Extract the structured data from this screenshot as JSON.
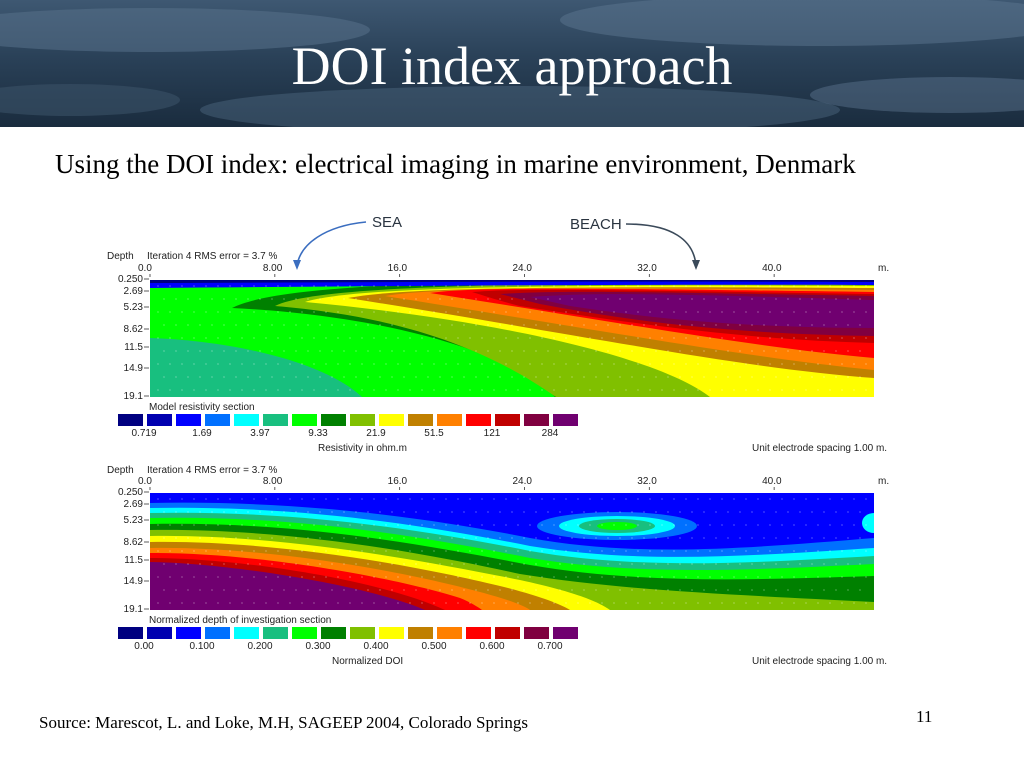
{
  "slide": {
    "title": "DOI index approach",
    "subtitle": "Using the DOI index: electrical imaging in marine environment, Denmark",
    "source": "Source: Marescot, L. and Loke, M.H, SAGEEP 2004, Colorado Springs",
    "page_number": "11"
  },
  "figure": {
    "sea_label": "SEA",
    "beach_label": "BEACH",
    "depth_header": "Depth",
    "iteration_text": "Iteration 4 RMS error = 3.7 %",
    "x_ticks": [
      "0.0",
      "8.00",
      "16.0",
      "24.0",
      "32.0",
      "40.0"
    ],
    "x_unit": "m.",
    "depth_ticks": [
      "0.250",
      "2.69",
      "5.23",
      "8.62",
      "11.5",
      "14.9",
      "19.1"
    ],
    "electrode_spacing": "Unit electrode spacing 1.00 m.",
    "top_section": {
      "section_label": "Model resistivity section",
      "scale_values": [
        "0.719",
        "1.69",
        "3.97",
        "9.33",
        "21.9",
        "51.5",
        "121",
        "284"
      ],
      "scale_title": "Resistivity in ohm.m"
    },
    "bottom_section": {
      "section_label": "Normalized depth of investigation section",
      "scale_values": [
        "0.00",
        "0.100",
        "0.200",
        "0.300",
        "0.400",
        "0.500",
        "0.600",
        "0.700"
      ],
      "scale_title": "Normalized DOI"
    },
    "palette": [
      "#000080",
      "#0000b0",
      "#0000ff",
      "#0070ff",
      "#00ffff",
      "#18bf7f",
      "#00ff00",
      "#008000",
      "#80c000",
      "#ffff00",
      "#c08000",
      "#ff8000",
      "#ff0000",
      "#c00000",
      "#800040",
      "#700070"
    ]
  }
}
